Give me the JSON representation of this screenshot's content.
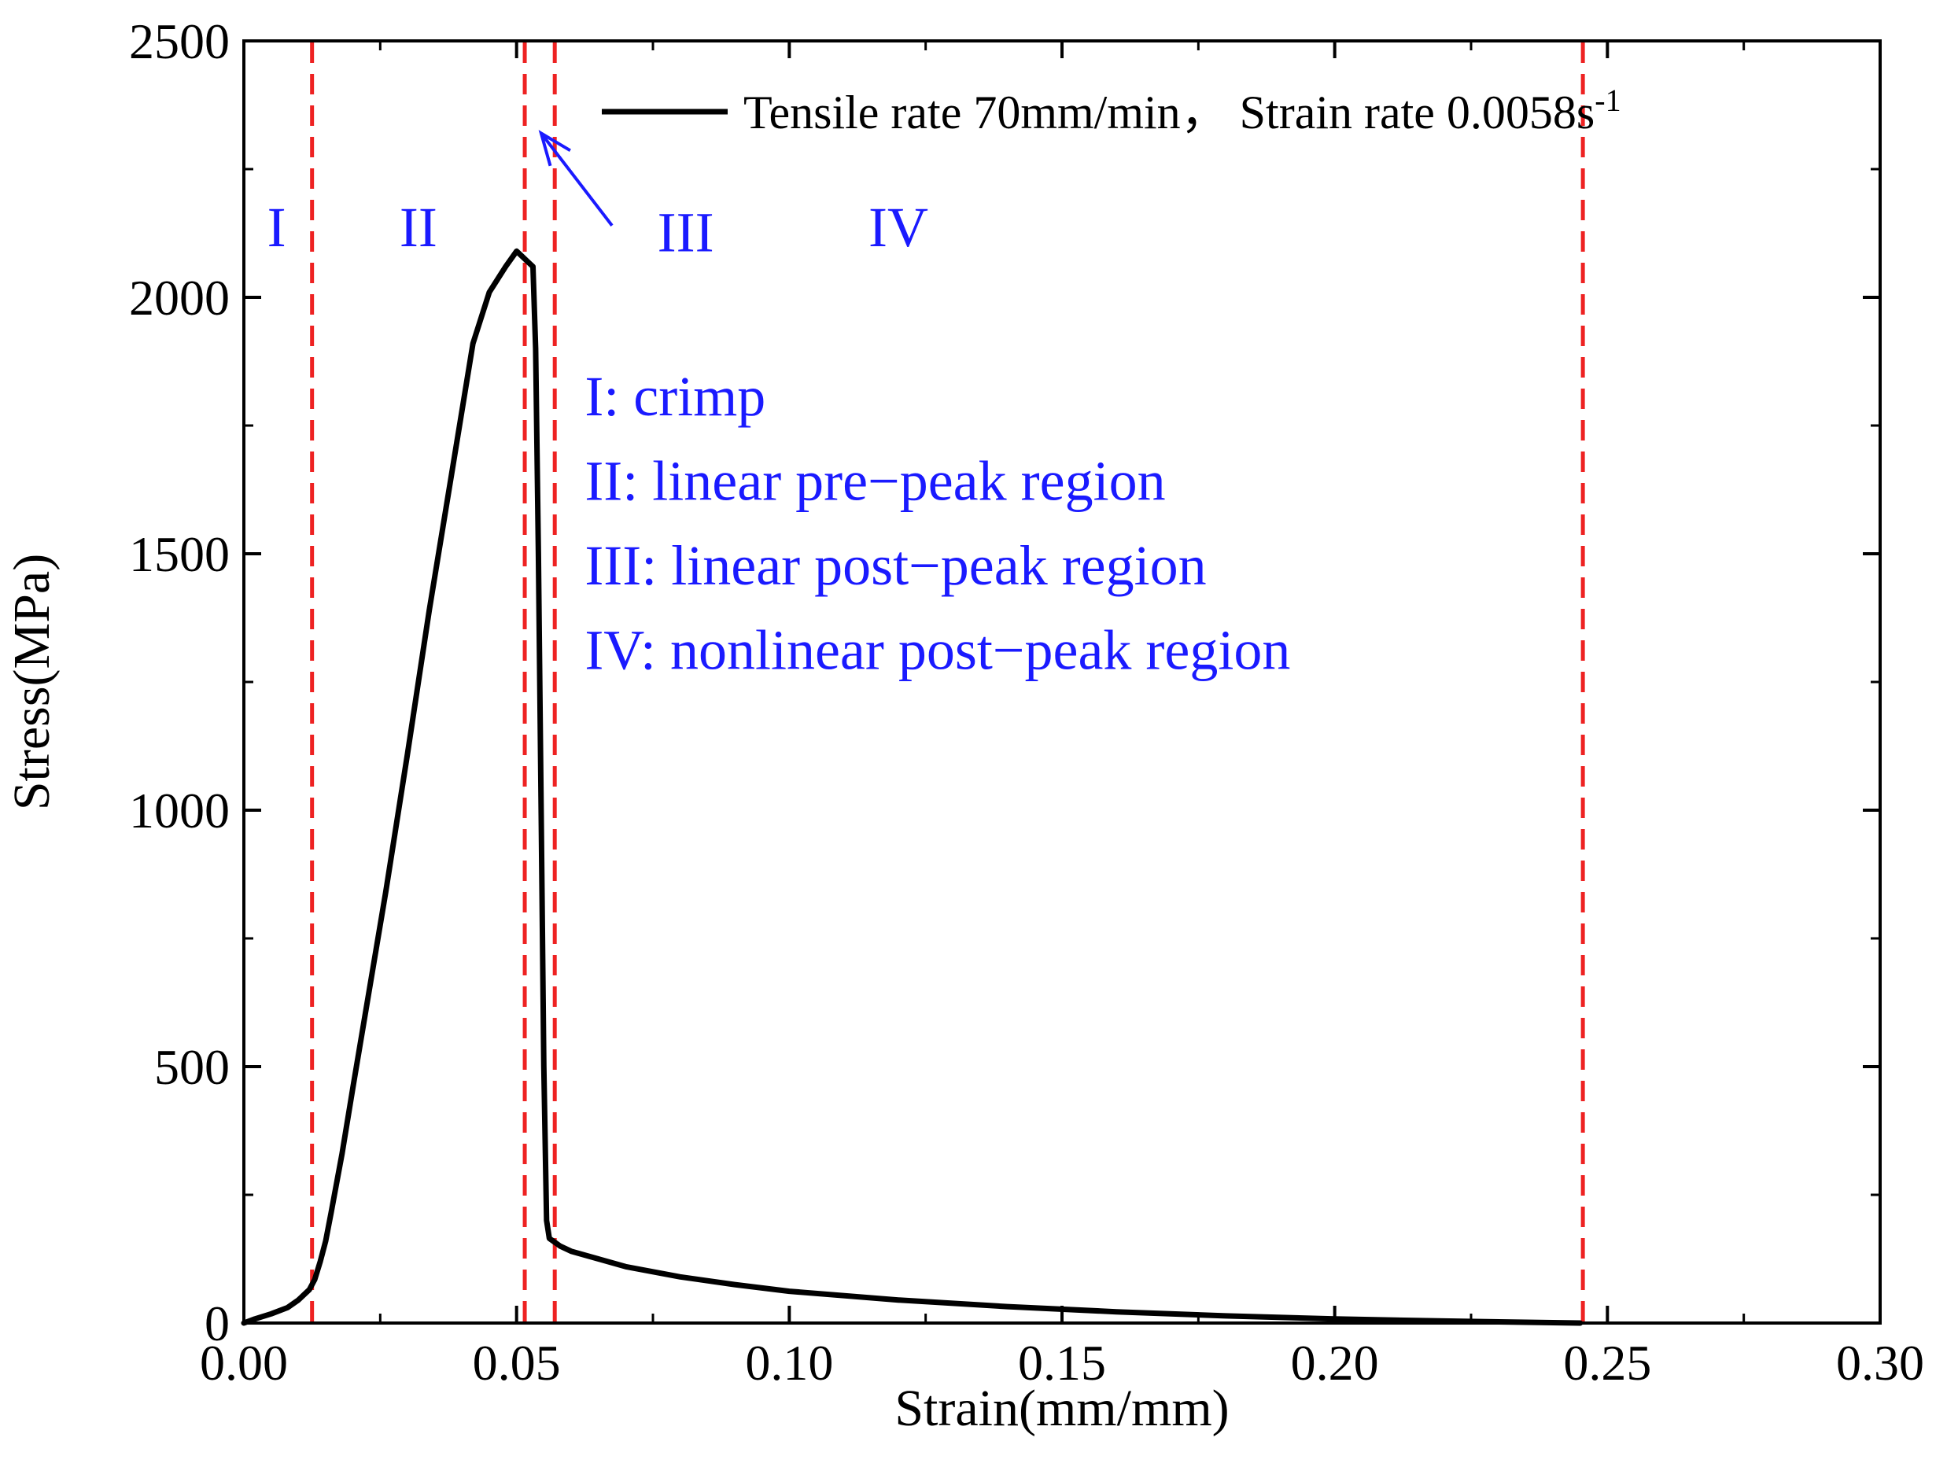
{
  "chart_data": {
    "type": "line",
    "xlabel": "Strain(mm/mm)",
    "ylabel": "Stress(MPa)",
    "xlim": [
      0,
      0.3
    ],
    "ylim": [
      0,
      2500
    ],
    "xticks": [
      0.0,
      0.05,
      0.1,
      0.15,
      0.2,
      0.25,
      0.3
    ],
    "xtick_labels": [
      "0.00",
      "0.05",
      "0.10",
      "0.15",
      "0.20",
      "0.25",
      "0.30"
    ],
    "yticks": [
      0,
      500,
      1000,
      1500,
      2000,
      2500
    ],
    "ytick_labels": [
      "0",
      "500",
      "1000",
      "1500",
      "2000",
      "2500"
    ],
    "grid": false,
    "legend_position": "top",
    "legend": {
      "label": "Tensile rate 70mm/min，  Strain rate 0.0058s",
      "superscript": "-1"
    },
    "colors": {
      "curve": "#000000",
      "divider": "#ee2222",
      "annotation": "#1a1aff"
    },
    "series": [
      {
        "x": [
          0.0,
          0.002,
          0.005,
          0.008,
          0.01,
          0.012,
          0.013,
          0.014,
          0.015,
          0.016,
          0.018,
          0.02,
          0.023,
          0.026,
          0.03,
          0.034,
          0.038,
          0.042,
          0.045,
          0.048,
          0.05,
          0.051,
          0.052,
          0.053,
          0.0535,
          0.054,
          0.0545,
          0.055,
          0.0555,
          0.056,
          0.058,
          0.06,
          0.065,
          0.07,
          0.08,
          0.09,
          0.1,
          0.12,
          0.14,
          0.16,
          0.18,
          0.2,
          0.22,
          0.245
        ],
        "y": [
          0,
          8,
          18,
          30,
          45,
          65,
          85,
          120,
          160,
          215,
          330,
          460,
          650,
          840,
          1110,
          1390,
          1650,
          1910,
          2010,
          2060,
          2090,
          2080,
          2070,
          2060,
          1900,
          1500,
          1000,
          500,
          200,
          165,
          150,
          140,
          125,
          110,
          90,
          75,
          62,
          45,
          32,
          22,
          14,
          8,
          4,
          0
        ]
      }
    ],
    "dividers_x": [
      0.0125,
      0.0515,
      0.057,
      0.2455
    ],
    "region_labels": [
      {
        "text": "I",
        "x": 0.006,
        "y": 2100
      },
      {
        "text": "II",
        "x": 0.032,
        "y": 2100
      },
      {
        "text": "III",
        "x": 0.081,
        "y": 2090
      },
      {
        "text": "IV",
        "x": 0.12,
        "y": 2100
      }
    ],
    "arrow": {
      "from": [
        0.0675,
        2140
      ],
      "to": [
        0.0545,
        2320
      ]
    },
    "annotations": [
      {
        "text": "I: crimp",
        "x": 0.0625,
        "y": 1770
      },
      {
        "text": "II: linear pre−peak region",
        "x": 0.0625,
        "y": 1605
      },
      {
        "text": "III: linear post−peak region",
        "x": 0.0625,
        "y": 1440
      },
      {
        "text": "IV: nonlinear post−peak region",
        "x": 0.0625,
        "y": 1275
      }
    ]
  }
}
